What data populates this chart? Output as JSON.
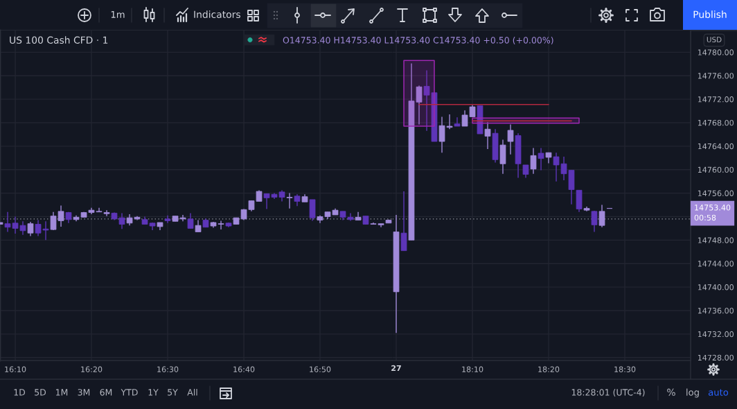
{
  "chart_data": [
    {
      "type": "candlestick",
      "title": "US 100 Cash CFD · 1",
      "x": [
        16.1333,
        16.15,
        16.1667,
        16.1833,
        16.2,
        16.2167,
        16.2333,
        16.25,
        16.2667,
        16.2833,
        16.3,
        16.3167,
        16.3333,
        16.35,
        16.3667,
        16.3833,
        16.4,
        16.4167,
        16.4333,
        16.45,
        16.4667,
        16.4833,
        16.5,
        16.5167,
        16.5333,
        16.55,
        16.5667,
        16.5833,
        16.6,
        16.6167,
        16.6333,
        16.65,
        16.6667,
        16.6833,
        16.7,
        16.7167,
        16.7333,
        16.75,
        16.7667,
        16.7833,
        16.8,
        16.8167,
        16.8333,
        16.85,
        16.8667,
        16.8833,
        16.9,
        16.9167,
        16.9333,
        16.95,
        16.9667,
        16.9833
      ],
      "ohlc": [
        [
          14750.7,
          14751.3,
          14750.6,
          14751.0
        ],
        [
          14750.8,
          14752.8,
          14749.4,
          14750.2
        ],
        [
          14750.9,
          14752.0,
          14749.1,
          14750.0
        ],
        [
          14750.5,
          14751.2,
          14748.9,
          14749.6
        ],
        [
          14749.2,
          14751.1,
          14748.7,
          14750.8
        ],
        [
          14750.7,
          14751.4,
          14748.7,
          14749.2
        ],
        [
          14749.9,
          14751.2,
          14748.0,
          14749.7
        ],
        [
          14749.8,
          14752.8,
          14749.7,
          14752.1
        ],
        [
          14751.3,
          14753.9,
          14750.3,
          14752.9
        ],
        [
          14752.7,
          14752.8,
          14750.9,
          14751.5
        ],
        [
          14751.5,
          14752.2,
          14751.2,
          14751.9
        ],
        [
          14751.9,
          14752.8,
          14751.9,
          14752.7
        ],
        [
          14752.7,
          14753.5,
          14752.4,
          14753.1
        ],
        [
          14752.8,
          14753.5,
          14752.8,
          14752.9
        ],
        [
          14752.5,
          14753.1,
          14752.1,
          14752.7
        ],
        [
          14752.6,
          14752.7,
          14751.4,
          14751.6
        ],
        [
          14751.8,
          14752.6,
          14749.9,
          14750.7
        ],
        [
          14750.9,
          14752.4,
          14750.5,
          14751.8
        ],
        [
          14751.6,
          14752.1,
          14751.4,
          14751.9
        ],
        [
          14751.5,
          14752.0,
          14750.7,
          14750.7
        ],
        [
          14750.9,
          14751.0,
          14749.7,
          14750.4
        ],
        [
          14750.3,
          14751.0,
          14749.7,
          14751.0
        ],
        [
          14751.6,
          14752.2,
          14750.9,
          14751.3
        ],
        [
          14751.2,
          14752.1,
          14751.2,
          14752.1
        ],
        [
          14751.6,
          14752.3,
          14751.2,
          14751.8
        ],
        [
          14751.6,
          14752.6,
          14750.0,
          14750.0
        ],
        [
          14749.4,
          14751.4,
          14749.4,
          14750.5
        ],
        [
          14751.4,
          14751.7,
          14750.2,
          14750.2
        ],
        [
          14750.4,
          14751.1,
          14750.1,
          14751.0
        ],
        [
          14750.7,
          14751.3,
          14749.8,
          14750.8
        ],
        [
          14750.9,
          14751.0,
          14750.2,
          14750.4
        ],
        [
          14750.7,
          14751.8,
          14750.7,
          14751.8
        ],
        [
          14751.6,
          14753.3,
          14751.4,
          14753.2
        ],
        [
          14753.2,
          14754.7,
          14752.9,
          14754.7
        ],
        [
          14754.6,
          14756.5,
          14754.6,
          14756.3
        ],
        [
          14755.9,
          14755.9,
          14753.3,
          14755.2
        ],
        [
          14755.8,
          14756.0,
          14755.0,
          14755.3
        ],
        [
          14756.2,
          14756.5,
          14754.6,
          14755.3
        ],
        [
          14755.2,
          14756.0,
          14753.4,
          14755.3
        ],
        [
          14755.5,
          14755.8,
          14753.8,
          14754.6
        ],
        [
          14754.5,
          14755.8,
          14754.5,
          14755.4
        ],
        [
          14754.9,
          14754.9,
          14751.3,
          14751.8
        ],
        [
          14751.4,
          14752.2,
          14750.9,
          14752.0
        ],
        [
          14752.0,
          14752.8,
          14751.6,
          14752.8
        ],
        [
          14752.3,
          14753.4,
          14752.3,
          14753.1
        ],
        [
          14752.9,
          14752.9,
          14751.4,
          14751.9
        ],
        [
          14751.9,
          14752.6,
          14751.3,
          14751.5
        ],
        [
          14751.4,
          14752.8,
          14751.4,
          14751.9
        ],
        [
          14752.1,
          14752.1,
          14750.7,
          14750.7
        ],
        [
          14750.7,
          14751.0,
          14750.7,
          14750.8
        ],
        [
          14750.6,
          14750.8,
          14750.2,
          14750.8
        ],
        [
          14750.9,
          14751.5,
          14750.9,
          14751.4
        ]
      ],
      "colors": [
        "#a18ada",
        "#5d35b8",
        "#5d35b8",
        "#5d35b8",
        "#a18ada",
        "#5d35b8",
        "#5d35b8",
        "#a18ada",
        "#a18ada",
        "#5d35b8",
        "#a18ada",
        "#a18ada",
        "#a18ada",
        "#a18ada",
        "#a18ada",
        "#5d35b8",
        "#5d35b8",
        "#a18ada",
        "#a18ada",
        "#5d35b8",
        "#5d35b8",
        "#a18ada",
        "#5d35b8",
        "#a18ada",
        "#a18ada",
        "#5d35b8",
        "#a18ada",
        "#5d35b8",
        "#a18ada",
        "#a18ada",
        "#5d35b8",
        "#a18ada",
        "#a18ada",
        "#a18ada",
        "#a18ada",
        "#5d35b8",
        "#5d35b8",
        "#5d35b8",
        "#a18ada",
        "#5d35b8",
        "#a18ada",
        "#5d35b8",
        "#a18ada",
        "#a18ada",
        "#a18ada",
        "#5d35b8",
        "#5d35b8",
        "#a18ada",
        "#5d35b8",
        "#a18ada",
        "#a18ada",
        "#a18ada"
      ],
      "xlim": [
        16.1333,
        16.9917
      ],
      "xticks": [
        {
          "value": 16.1667,
          "label": "16:10"
        },
        {
          "value": 16.3333,
          "label": "16:20"
        },
        {
          "value": 16.5,
          "label": "16:30"
        },
        {
          "value": 16.6667,
          "label": "16:40"
        },
        {
          "value": 16.8333,
          "label": "16:50"
        }
      ],
      "ylim": [
        14727.5,
        14783.7
      ],
      "yticks": [
        14728,
        14732,
        14736,
        14740,
        14744,
        14748,
        14752,
        14756,
        14760,
        14764,
        14768,
        14772,
        14776,
        14780
      ],
      "tick_labels": "x",
      "grid": true,
      "ref_lines": [
        {
          "axis": "y",
          "value": 14751.6,
          "color": "#9598a1",
          "line_style": "dotted"
        }
      ],
      "annotations": [
        "O14753.40 H14753.40 L14753.40 C14753.40 +0.50 (+0.00%)"
      ]
    },
    {
      "type": "candlestick",
      "x": [
        18.0,
        18.0167,
        18.0333,
        18.05,
        18.0667,
        18.0833,
        18.1,
        18.1167,
        18.1333,
        18.15,
        18.1667,
        18.1833,
        18.2,
        18.2167,
        18.2333,
        18.25,
        18.2667,
        18.2833,
        18.3,
        18.3167,
        18.3333,
        18.35,
        18.3667,
        18.3833,
        18.4,
        18.4167,
        18.4333,
        18.45,
        18.4667
      ],
      "ohlc": [
        [
          14739.2,
          14752.3,
          14732.2,
          14749.4
        ],
        [
          14749.2,
          14756.3,
          14746.2,
          14746.2
        ],
        [
          14748.0,
          14778.1,
          14748.0,
          14771.7
        ],
        [
          14771.5,
          14774.3,
          14767.7,
          14774.1
        ],
        [
          14774.2,
          14776.9,
          14766.6,
          14772.7
        ],
        [
          14773.1,
          14773.1,
          14764.8,
          14764.8
        ],
        [
          14764.8,
          14769.0,
          14762.9,
          14767.5
        ],
        [
          14767.2,
          14769.4,
          14766.9,
          14767.4
        ],
        [
          14767.8,
          14768.9,
          14767.4,
          14767.4
        ],
        [
          14767.4,
          14770.1,
          14767.4,
          14769.3
        ],
        [
          14769.0,
          14771.0,
          14769.0,
          14770.7
        ],
        [
          14770.9,
          14770.9,
          14766.1,
          14766.1
        ],
        [
          14765.7,
          14768.1,
          14763.5,
          14766.9
        ],
        [
          14766.2,
          14766.9,
          14761.2,
          14761.7
        ],
        [
          14761.0,
          14765.1,
          14759.3,
          14764.2
        ],
        [
          14764.8,
          14767.7,
          14762.6,
          14766.7
        ],
        [
          14765.8,
          14766.2,
          14758.6,
          14761.0
        ],
        [
          14760.8,
          14760.8,
          14758.6,
          14759.2
        ],
        [
          14760.1,
          14763.7,
          14759.3,
          14762.4
        ],
        [
          14762.8,
          14763.7,
          14759.9,
          14761.9
        ],
        [
          14762.1,
          14762.9,
          14761.1,
          14762.9
        ],
        [
          14762.2,
          14762.9,
          14758.0,
          14760.8
        ],
        [
          14761.0,
          14762.2,
          14758.2,
          14759.3
        ],
        [
          14759.9,
          14759.9,
          14754.1,
          14756.6
        ],
        [
          14756.5,
          14756.5,
          14752.8,
          14753.3
        ],
        [
          14753.1,
          14753.7,
          14752.9,
          14753.4
        ],
        [
          14752.9,
          14753.0,
          14749.4,
          14750.6
        ],
        [
          14750.5,
          14754.0,
          14750.2,
          14752.9
        ],
        [
          14753.4,
          14753.4,
          14753.4,
          14753.4
        ]
      ],
      "colors": [
        "#a18ada",
        "#5d35b8",
        "#a18ada",
        "#a18ada",
        "#5d35b8",
        "#5d35b8",
        "#a18ada",
        "#a18ada",
        "#5d35b8",
        "#a18ada",
        "#a18ada",
        "#5d35b8",
        "#a18ada",
        "#5d35b8",
        "#a18ada",
        "#a18ada",
        "#5d35b8",
        "#5d35b8",
        "#a18ada",
        "#5d35b8",
        "#a18ada",
        "#5d35b8",
        "#5d35b8",
        "#5d35b8",
        "#5d35b8",
        "#a18ada",
        "#5d35b8",
        "#a18ada",
        "#a18ada"
      ],
      "series": [
        {
          "type": "line",
          "color": "#9c27b0",
          "x": [
            18.0167,
            18.0833
          ],
          "values": [
            null,
            null
          ],
          "lower": [
            14767.4,
            14767.4
          ],
          "upper": [
            14778.6,
            14778.6
          ]
        },
        {
          "type": "line",
          "color": "#b2283f",
          "x": [
            18.05,
            18.3333
          ],
          "values": [
            14771.1,
            14771.1
          ]
        },
        {
          "type": "line",
          "color": "#9c27b0",
          "x": [
            18.1667,
            18.4
          ],
          "values": [
            null,
            null
          ],
          "lower": [
            14767.9,
            14767.9
          ],
          "upper": [
            14768.8,
            14768.8
          ]
        },
        {
          "type": "line",
          "color": "#b2283f",
          "x": [
            18.1667,
            18.3833
          ],
          "values": [
            14768.3,
            14768.3
          ]
        }
      ],
      "xlim": [
        17.9917,
        18.6439
      ],
      "xticks": [
        {
          "value": 18.0,
          "label": null
        },
        {
          "value": 18.1667,
          "label": "18:10"
        },
        {
          "value": 18.3333,
          "label": "18:20"
        },
        {
          "value": 18.5,
          "label": "18:30"
        }
      ],
      "ylim": [
        14727.5,
        14783.7
      ],
      "yticks": [
        {
          "value": 14728,
          "label": "14728.00"
        },
        {
          "value": 14732,
          "label": "14732.00"
        },
        {
          "value": 14736,
          "label": "14736.00"
        },
        {
          "value": 14740,
          "label": "14740.00"
        },
        {
          "value": 14744,
          "label": "14744.00"
        },
        {
          "value": 14748,
          "label": "14748.00"
        },
        {
          "value": 14752,
          "label": null
        },
        {
          "value": 14756,
          "label": "14756.00"
        },
        {
          "value": 14760,
          "label": "14760.00"
        },
        {
          "value": 14764,
          "label": "14764.00"
        },
        {
          "value": 14768,
          "label": "14768.00"
        },
        {
          "value": 14772,
          "label": "14772.00"
        },
        {
          "value": 14776,
          "label": "14776.00"
        },
        {
          "value": 14780,
          "label": "14780.00"
        }
      ],
      "grid": true,
      "ref_lines": [
        {
          "axis": "y",
          "value": 14751.6,
          "color": "#9598a1",
          "line_style": "dotted"
        }
      ],
      "annotations": [
        "1m",
        "Indicators",
        "Publish",
        "14753.40\n00:58",
        "USD",
        "1D",
        "5D",
        "1M",
        "3M",
        "6M",
        "YTD",
        "1Y",
        "5Y",
        "All",
        "18:28:01 (UTC-4)",
        "%",
        "log",
        "auto",
        "27"
      ]
    }
  ]
}
